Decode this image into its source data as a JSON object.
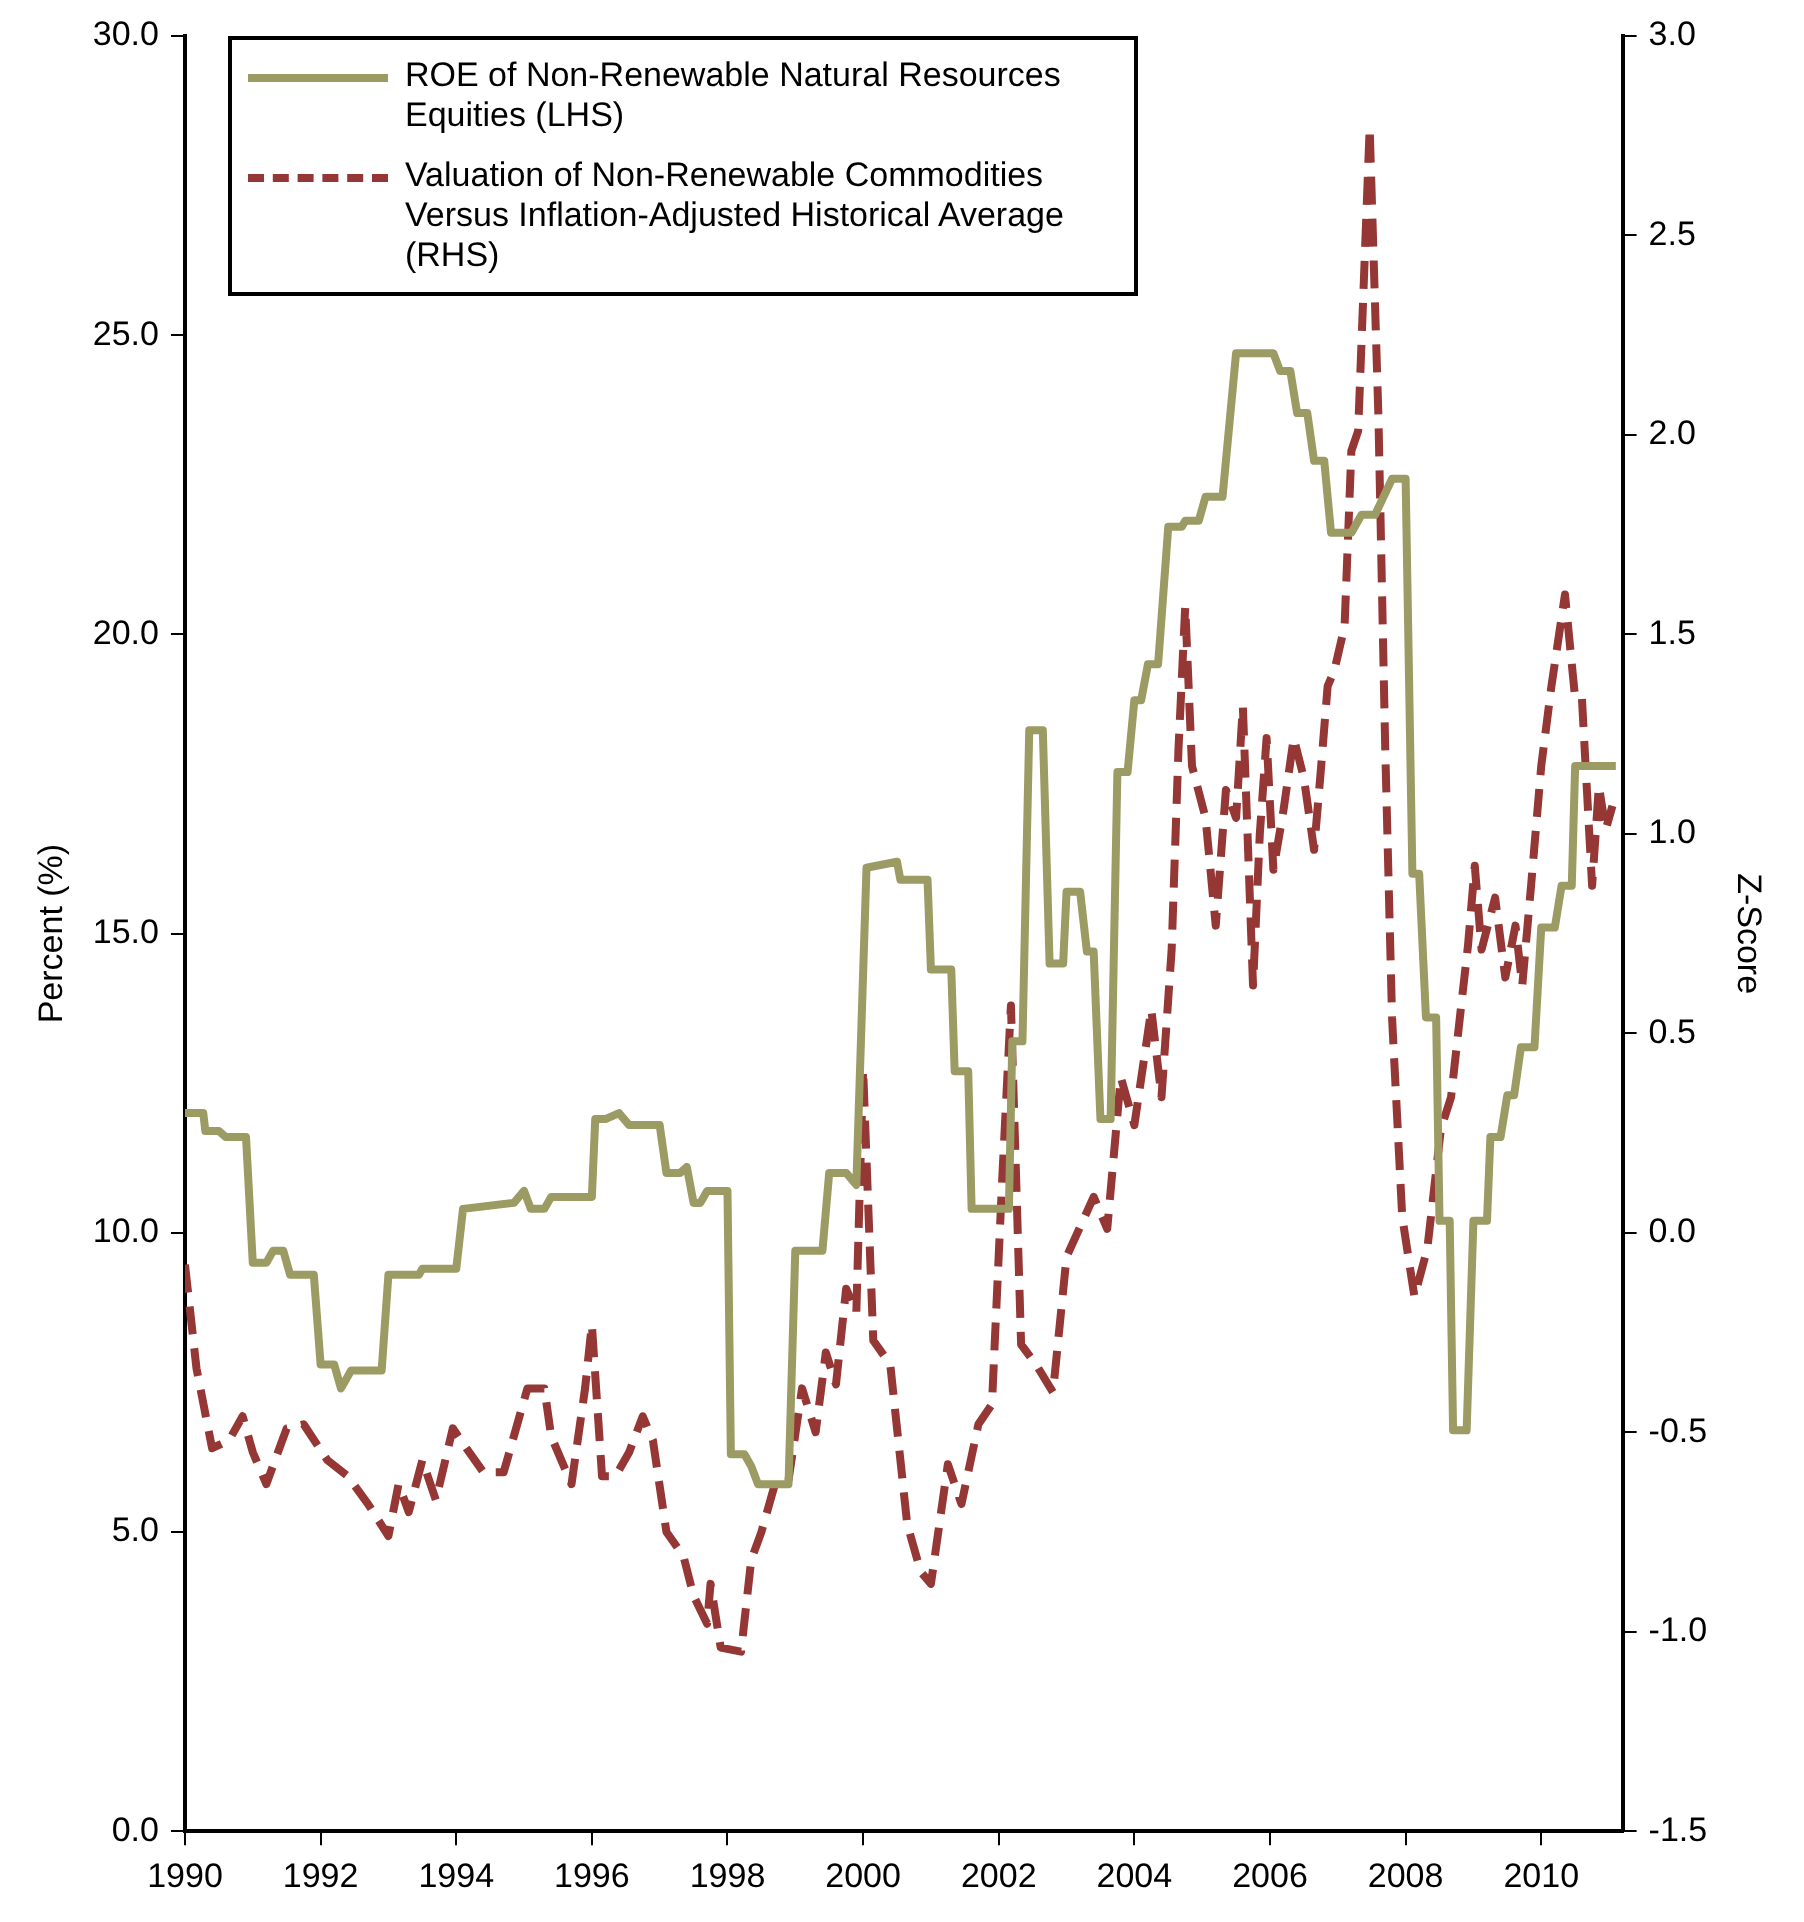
{
  "chart_data": {
    "type": "line",
    "ylabel": "Percent (%)",
    "y2label": "Z-Score",
    "legend": "top left",
    "marker": "none",
    "xlim": [
      1990,
      2011.2
    ],
    "xticks": [
      1990,
      1992,
      1994,
      1996,
      1998,
      2000,
      2002,
      2004,
      2006,
      2008,
      2010
    ],
    "ylim": [
      0,
      30
    ],
    "yticks": [
      {
        "value": 0,
        "label": "0.0"
      },
      {
        "value": 5,
        "label": "5.0"
      },
      {
        "value": 10,
        "label": "10.0"
      },
      {
        "value": 15,
        "label": "15.0"
      },
      {
        "value": 20,
        "label": "20.0"
      },
      {
        "value": 25,
        "label": "25.0"
      },
      {
        "value": 30,
        "label": "30.0"
      }
    ],
    "y2lim": [
      -1.5,
      3
    ],
    "y2ticks": [
      {
        "value": -1.5,
        "label": "-1.5"
      },
      {
        "value": -1,
        "label": "-1.0"
      },
      {
        "value": -0.5,
        "label": "-0.5"
      },
      {
        "value": 0,
        "label": "0.0"
      },
      {
        "value": 0.5,
        "label": "0.5"
      },
      {
        "value": 1,
        "label": "1.0"
      },
      {
        "value": 1.5,
        "label": "1.5"
      },
      {
        "value": 2,
        "label": "2.0"
      },
      {
        "value": 2.5,
        "label": "2.5"
      },
      {
        "value": 3,
        "label": "3.0"
      }
    ],
    "series": [
      {
        "name": "ROE of Non-Renewable Natural Resources Equities (LHS)",
        "color": "#9b9b63",
        "line_style": "solid",
        "x": [
          1990.0,
          1990.27,
          1990.3,
          1990.5,
          1990.6,
          1990.9,
          1991.0,
          1991.2,
          1991.3,
          1991.45,
          1991.55,
          1991.9,
          1992.0,
          1992.2,
          1992.3,
          1992.45,
          1992.9,
          1993.0,
          1993.45,
          1993.5,
          1994.0,
          1994.1,
          1994.85,
          1995.0,
          1995.1,
          1995.3,
          1995.4,
          1996.0,
          1996.05,
          1996.2,
          1996.4,
          1996.55,
          1997.0,
          1997.1,
          1997.3,
          1997.4,
          1997.5,
          1997.6,
          1997.7,
          1998.0,
          1998.05,
          1998.25,
          1998.35,
          1998.45,
          1998.9,
          1999.0,
          1999.4,
          1999.5,
          1999.75,
          1999.9,
          2000.05,
          2000.5,
          2000.55,
          2000.95,
          2001.0,
          2001.3,
          2001.35,
          2001.55,
          2001.6,
          2002.15,
          2002.2,
          2002.35,
          2002.45,
          2002.65,
          2002.75,
          2002.95,
          2003.0,
          2003.2,
          2003.3,
          2003.4,
          2003.5,
          2003.65,
          2003.75,
          2003.9,
          2004.0,
          2004.1,
          2004.2,
          2004.35,
          2004.5,
          2004.7,
          2004.75,
          2004.95,
          2005.05,
          2005.3,
          2005.5,
          2006.05,
          2006.15,
          2006.3,
          2006.4,
          2006.55,
          2006.65,
          2006.8,
          2006.9,
          2007.2,
          2007.35,
          2007.55,
          2007.8,
          2008.0,
          2008.1,
          2008.2,
          2008.3,
          2008.45,
          2008.5,
          2008.65,
          2008.7,
          2008.9,
          2009.0,
          2009.2,
          2009.25,
          2009.4,
          2009.5,
          2009.6,
          2009.7,
          2009.9,
          2010.0,
          2010.2,
          2010.3,
          2010.45,
          2010.5,
          2011.1
        ],
        "values": [
          12.0,
          12.0,
          11.7,
          11.7,
          11.6,
          11.6,
          9.5,
          9.5,
          9.7,
          9.7,
          9.3,
          9.3,
          7.8,
          7.8,
          7.4,
          7.7,
          7.7,
          9.3,
          9.3,
          9.4,
          9.4,
          10.4,
          10.5,
          10.7,
          10.4,
          10.4,
          10.6,
          10.6,
          11.9,
          11.9,
          12.0,
          11.8,
          11.8,
          11.0,
          11.0,
          11.1,
          10.5,
          10.5,
          10.7,
          10.7,
          6.3,
          6.3,
          6.1,
          5.8,
          5.8,
          9.7,
          9.7,
          11.0,
          11.0,
          10.8,
          16.1,
          16.2,
          15.9,
          15.9,
          14.4,
          14.4,
          12.7,
          12.7,
          10.4,
          10.4,
          13.2,
          13.2,
          18.4,
          18.4,
          14.5,
          14.5,
          15.7,
          15.7,
          14.7,
          14.7,
          11.9,
          11.9,
          17.7,
          17.7,
          18.9,
          18.9,
          19.5,
          19.5,
          21.8,
          21.8,
          21.9,
          21.9,
          22.3,
          22.3,
          24.7,
          24.7,
          24.4,
          24.4,
          23.7,
          23.7,
          22.9,
          22.9,
          21.7,
          21.7,
          22.0,
          22.0,
          22.6,
          22.6,
          16.0,
          16.0,
          13.6,
          13.6,
          10.2,
          10.2,
          6.7,
          6.7,
          10.2,
          10.2,
          11.6,
          11.6,
          12.3,
          12.3,
          13.1,
          13.1,
          15.1,
          15.1,
          15.8,
          15.8,
          17.8,
          17.8
        ]
      },
      {
        "name": "Valuation of Non-Renewable Commodities Versus Inflation-Adjusted Historical Average (RHS)",
        "color": "#953735",
        "line_style": "dashed",
        "axis": "y2",
        "x": [
          1990.0,
          1990.17,
          1990.4,
          1990.65,
          1990.85,
          1991.0,
          1991.2,
          1991.5,
          1991.75,
          1992.1,
          1992.4,
          1992.7,
          1993.0,
          1993.15,
          1993.3,
          1993.5,
          1993.7,
          1993.95,
          1994.15,
          1994.4,
          1994.7,
          1995.05,
          1995.3,
          1995.4,
          1995.7,
          1995.9,
          1996.0,
          1996.15,
          1996.35,
          1996.55,
          1996.75,
          1996.9,
          1997.1,
          1997.35,
          1997.5,
          1997.7,
          1997.75,
          1997.9,
          1998.2,
          1998.35,
          1998.5,
          1998.7,
          1998.9,
          1999.1,
          1999.3,
          1999.45,
          1999.6,
          1999.75,
          1999.9,
          2000.0,
          2000.15,
          2000.4,
          2000.65,
          2000.85,
          2001.0,
          2001.25,
          2001.45,
          2001.7,
          2001.9,
          2002.05,
          2002.18,
          2002.33,
          2002.55,
          2002.8,
          2003.0,
          2003.4,
          2003.6,
          2003.8,
          2004.0,
          2004.25,
          2004.4,
          2004.55,
          2004.65,
          2004.75,
          2004.85,
          2005.05,
          2005.2,
          2005.35,
          2005.5,
          2005.6,
          2005.75,
          2005.85,
          2005.95,
          2006.05,
          2006.2,
          2006.35,
          2006.5,
          2006.65,
          2006.75,
          2006.85,
          2006.95,
          2007.1,
          2007.2,
          2007.3,
          2007.47,
          2007.6,
          2007.7,
          2007.8,
          2007.95,
          2008.13,
          2008.32,
          2008.52,
          2008.67,
          2008.82,
          2008.92,
          2009.02,
          2009.12,
          2009.32,
          2009.47,
          2009.62,
          2009.72,
          2009.85,
          2010.0,
          2010.15,
          2010.35,
          2010.5,
          2010.6,
          2010.75,
          2010.85,
          2010.95,
          2011.05
        ],
        "values": [
          -0.08,
          -0.34,
          -0.54,
          -0.52,
          -0.46,
          -0.55,
          -0.63,
          -0.49,
          -0.48,
          -0.57,
          -0.61,
          -0.68,
          -0.76,
          -0.63,
          -0.7,
          -0.57,
          -0.67,
          -0.49,
          -0.54,
          -0.6,
          -0.6,
          -0.39,
          -0.39,
          -0.51,
          -0.63,
          -0.39,
          -0.23,
          -0.61,
          -0.61,
          -0.55,
          -0.46,
          -0.52,
          -0.75,
          -0.81,
          -0.91,
          -0.98,
          -0.88,
          -1.04,
          -1.05,
          -0.82,
          -0.75,
          -0.63,
          -0.62,
          -0.39,
          -0.5,
          -0.3,
          -0.38,
          -0.14,
          -0.2,
          0.41,
          -0.27,
          -0.33,
          -0.73,
          -0.85,
          -0.88,
          -0.58,
          -0.68,
          -0.48,
          -0.43,
          0.13,
          0.57,
          -0.28,
          -0.33,
          -0.4,
          -0.06,
          0.09,
          0.01,
          0.39,
          0.27,
          0.56,
          0.34,
          0.71,
          1.21,
          1.57,
          1.17,
          1.04,
          0.77,
          1.11,
          1.04,
          1.32,
          0.62,
          1.0,
          1.24,
          0.91,
          1.06,
          1.24,
          1.14,
          0.96,
          1.16,
          1.37,
          1.41,
          1.52,
          1.96,
          2.01,
          2.77,
          2.04,
          1.21,
          0.54,
          0.04,
          -0.16,
          -0.04,
          0.26,
          0.34,
          0.57,
          0.72,
          0.92,
          0.71,
          0.84,
          0.64,
          0.77,
          0.62,
          0.87,
          1.17,
          1.37,
          1.6,
          1.34,
          1.34,
          0.87,
          1.12,
          1.01,
          1.07
        ]
      }
    ]
  }
}
